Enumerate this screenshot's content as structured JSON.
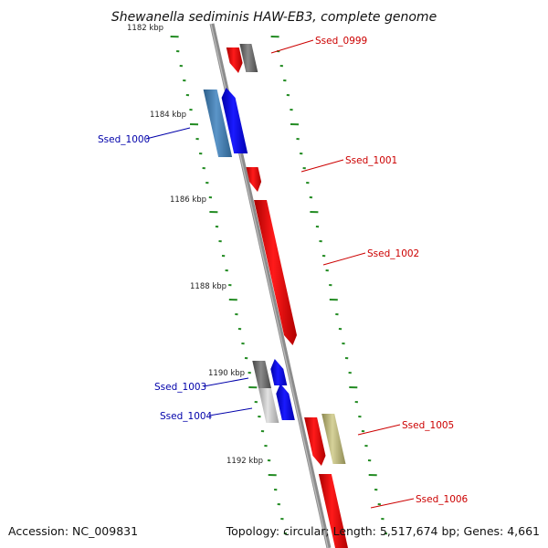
{
  "title": "Shewanella sediminis HAW-EB3, complete genome",
  "footer": {
    "accession": "Accession: NC_009831",
    "summary": "Topology: circular; Length: 5,517,674 bp; Genes: 4,661"
  },
  "scale_labels": [
    "1182 kbp",
    "1184 kbp",
    "1186 kbp",
    "1188 kbp",
    "1190 kbp",
    "1192 kbp"
  ],
  "gene_labels": [
    "Ssed_0999",
    "Ssed_1000",
    "Ssed_1001",
    "Ssed_1002",
    "Ssed_1003",
    "Ssed_1004",
    "Ssed_1005",
    "Ssed_1006"
  ],
  "colors": {
    "forward_gene": "#ff0000",
    "reverse_gene": "#0000ff",
    "forward_label": "#cc0000",
    "reverse_label": "#0000aa",
    "backbone": "#808080",
    "ticks": "#228b22",
    "gray_feature": "#707070",
    "olive_feature": "#bcb87a"
  }
}
